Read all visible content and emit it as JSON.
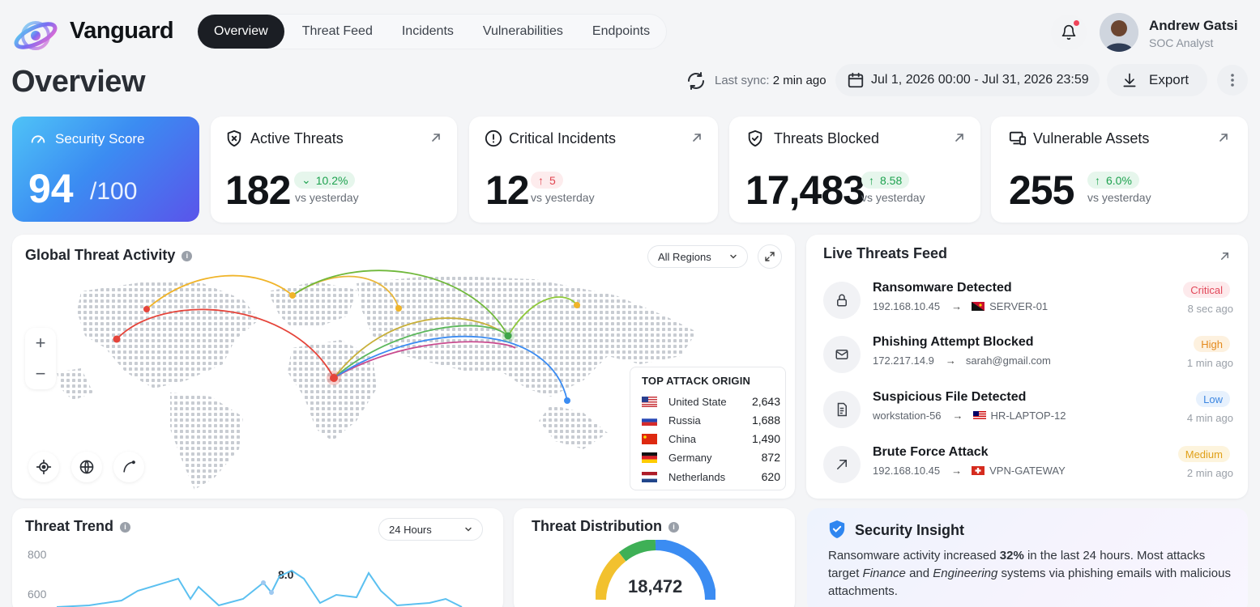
{
  "brand": {
    "name": "Vanguard"
  },
  "nav": {
    "items": [
      {
        "label": "Overview",
        "active": true
      },
      {
        "label": "Threat Feed",
        "active": false
      },
      {
        "label": "Incidents",
        "active": false
      },
      {
        "label": "Vulnerabilities",
        "active": false
      },
      {
        "label": "Endpoints",
        "active": false
      }
    ]
  },
  "user": {
    "name": "Andrew Gatsi",
    "role": "SOC Analyst"
  },
  "page": {
    "title": "Overview",
    "sync_label": "Last sync:",
    "sync_value": "2 min ago",
    "date_range": "Jul 1, 2026 00:00 - Jul 31, 2026 23:59",
    "export_label": "Export"
  },
  "kpis": {
    "score": {
      "title": "Security Score",
      "value": "94",
      "max": "/100"
    },
    "active_threats": {
      "title": "Active Threats",
      "value": "182",
      "change": "10.2%",
      "direction": "down",
      "sub": "vs yesterday"
    },
    "critical_incidents": {
      "title": "Critical Incidents",
      "value": "12",
      "change": "5",
      "direction": "up",
      "sub": "vs yesterday"
    },
    "threats_blocked": {
      "title": "Threats Blocked",
      "value": "17,483",
      "change": "8.58",
      "direction": "up",
      "sub": "vs yesterday"
    },
    "vulnerable_assets": {
      "title": "Vulnerable Assets",
      "value": "255",
      "change": "6.0%",
      "direction": "up",
      "sub": "vs yesterday"
    }
  },
  "map": {
    "title": "Global Threat Activity",
    "region_select": "All Regions",
    "zoom_in": "+",
    "zoom_out": "−",
    "top_origin": {
      "title": "TOP ATTACK ORIGIN",
      "rows": [
        {
          "country": "United State",
          "value": "2,643",
          "flag": "us"
        },
        {
          "country": "Russia",
          "value": "1,688",
          "flag": "ru"
        },
        {
          "country": "China",
          "value": "1,490",
          "flag": "cn"
        },
        {
          "country": "Germany",
          "value": "872",
          "flag": "de"
        },
        {
          "country": "Netherlands",
          "value": "620",
          "flag": "nl"
        }
      ]
    }
  },
  "feed": {
    "title": "Live Threats Feed",
    "items": [
      {
        "title": "Ransomware Detected",
        "source": "192.168.10.45",
        "target": "SERVER-01",
        "severity": "Critical",
        "time": "8 sec ago",
        "icon": "lock-icon"
      },
      {
        "title": "Phishing Attempt Blocked",
        "source": "172.217.14.9",
        "target": "sarah@gmail.com",
        "severity": "High",
        "time": "1 min ago",
        "icon": "mail-icon"
      },
      {
        "title": "Suspicious File Detected",
        "source": "workstation-56",
        "target": "HR-LAPTOP-12",
        "severity": "Low",
        "time": "4 min ago",
        "icon": "file-icon"
      },
      {
        "title": "Brute Force Attack",
        "source": "192.168.10.45",
        "target": "VPN-GATEWAY",
        "severity": "Medium",
        "time": "2 min ago",
        "icon": "arrow-icon"
      }
    ]
  },
  "trend": {
    "title": "Threat Trend",
    "range_select": "24 Hours",
    "y_ticks": [
      "800",
      "600"
    ],
    "peak_label": "8.0"
  },
  "distribution": {
    "title": "Threat Distribution",
    "total": "18,472"
  },
  "insight": {
    "title": "Security Insight",
    "t1": "Ransomware activity increased ",
    "t2": "32%",
    "t3": " in the last 24 hours. Most attacks target ",
    "t4": "Finance",
    "t5": " and ",
    "t6": "Engineering",
    "t7": " systems via phishing emails with malicious attachments."
  },
  "colors": {
    "accent": "#3b8cf2",
    "dark": "#1b1e24",
    "critical": "#e2485a",
    "success": "#1ea24f"
  }
}
